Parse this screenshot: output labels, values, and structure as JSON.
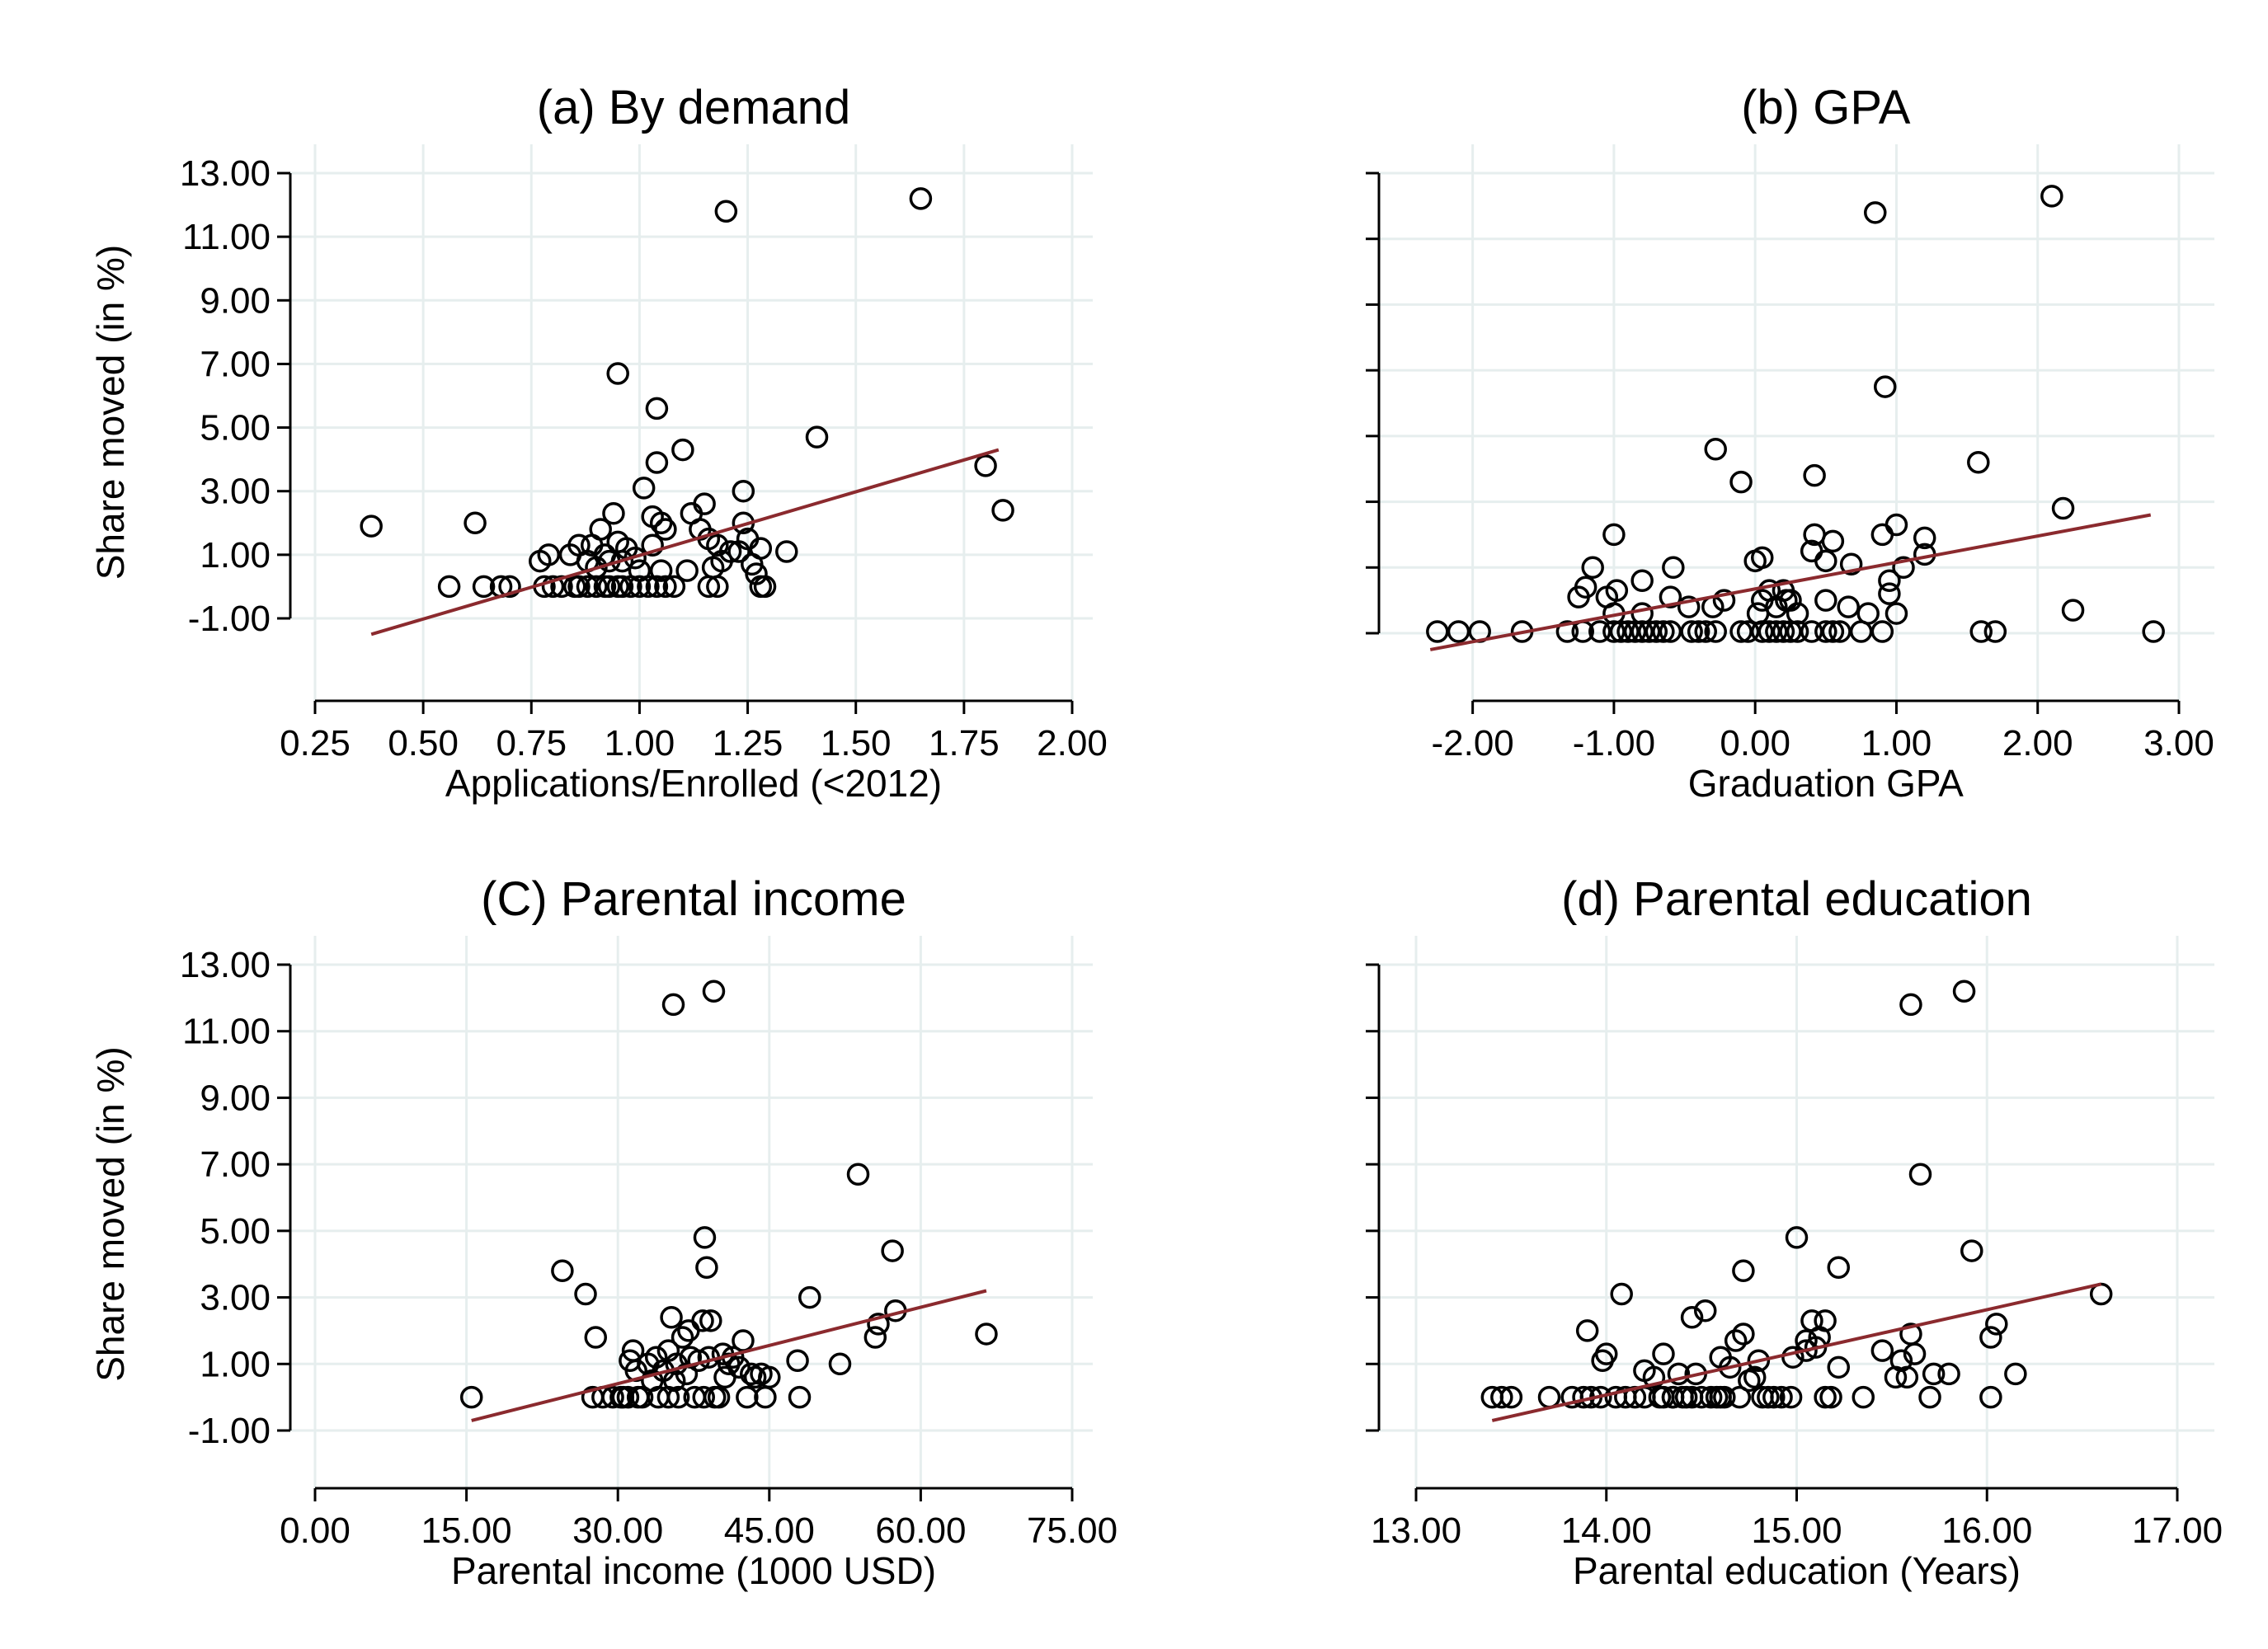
{
  "figure": {
    "colors": {
      "fit_line": "#8b2a2e",
      "grid": "#e6eeee",
      "marker": "#000000"
    }
  },
  "chart_data": [
    {
      "type": "scatter",
      "title": "(a) By demand",
      "xlabel": "Applications/Enrolled (<2012)",
      "ylabel": "Share moved (in %)",
      "xlim": [
        0.25,
        2.0
      ],
      "ylim": [
        -1.0,
        13.0
      ],
      "xticks": [
        0.25,
        0.5,
        0.75,
        1.0,
        1.25,
        1.5,
        1.75,
        2.0
      ],
      "xtick_labels": [
        "0.25",
        "0.50",
        "0.75",
        "1.00",
        "1.25",
        "1.50",
        "1.75",
        "2.00"
      ],
      "yticks": [
        -1,
        1,
        3,
        5,
        7,
        9,
        11,
        13
      ],
      "ytick_labels": [
        "-1.00",
        "1.00",
        "3.00",
        "5.00",
        "7.00",
        "9.00",
        "11.00",
        "13.00"
      ],
      "show_ytick_labels": true,
      "grid": true,
      "fit": {
        "x": [
          0.38,
          1.83
        ],
        "y": [
          -1.5,
          4.3
        ]
      },
      "points": [
        [
          0.38,
          1.9
        ],
        [
          0.56,
          0.0
        ],
        [
          0.62,
          2.0
        ],
        [
          0.64,
          0.0
        ],
        [
          0.68,
          0.0
        ],
        [
          0.7,
          0.0
        ],
        [
          0.77,
          0.8
        ],
        [
          0.79,
          1.0
        ],
        [
          0.78,
          0.0
        ],
        [
          0.8,
          0.0
        ],
        [
          0.82,
          0.0
        ],
        [
          0.84,
          1.0
        ],
        [
          0.85,
          0.0
        ],
        [
          0.86,
          1.3
        ],
        [
          0.88,
          0.0
        ],
        [
          0.88,
          0.8
        ],
        [
          0.89,
          1.3
        ],
        [
          0.9,
          0.0
        ],
        [
          0.9,
          0.6
        ],
        [
          0.91,
          1.8
        ],
        [
          0.92,
          1.0
        ],
        [
          0.93,
          0.8
        ],
        [
          0.93,
          0.0
        ],
        [
          0.94,
          2.3
        ],
        [
          0.95,
          1.4
        ],
        [
          0.96,
          0.0
        ],
        [
          0.96,
          0.8
        ],
        [
          0.97,
          1.2
        ],
        [
          0.98,
          0.0
        ],
        [
          0.99,
          0.9
        ],
        [
          1.0,
          0.0
        ],
        [
          1.0,
          0.5
        ],
        [
          1.01,
          3.1
        ],
        [
          1.02,
          0.0
        ],
        [
          1.03,
          1.3
        ],
        [
          1.03,
          2.2
        ],
        [
          1.04,
          0.0
        ],
        [
          1.05,
          0.5
        ],
        [
          1.05,
          2.0
        ],
        [
          1.06,
          1.8
        ],
        [
          0.95,
          6.7
        ],
        [
          1.04,
          5.6
        ],
        [
          1.04,
          3.9
        ],
        [
          1.1,
          4.3
        ],
        [
          1.08,
          0.0
        ],
        [
          1.11,
          0.5
        ],
        [
          1.12,
          2.3
        ],
        [
          1.14,
          1.8
        ],
        [
          1.15,
          2.6
        ],
        [
          1.16,
          1.5
        ],
        [
          1.16,
          0.0
        ],
        [
          1.17,
          0.6
        ],
        [
          1.18,
          0.0
        ],
        [
          1.18,
          1.3
        ],
        [
          1.19,
          0.8
        ],
        [
          1.21,
          1.1
        ],
        [
          1.23,
          1.1
        ],
        [
          1.24,
          2.0
        ],
        [
          1.24,
          3.0
        ],
        [
          1.25,
          1.5
        ],
        [
          1.26,
          0.7
        ],
        [
          1.27,
          0.4
        ],
        [
          1.28,
          0.0
        ],
        [
          1.28,
          1.2
        ],
        [
          1.29,
          0.0
        ],
        [
          1.34,
          1.1
        ],
        [
          1.41,
          4.7
        ],
        [
          1.2,
          11.8
        ],
        [
          1.65,
          12.2
        ],
        [
          1.8,
          3.8
        ],
        [
          1.84,
          2.4
        ],
        [
          0.92,
          0.0
        ],
        [
          0.86,
          0.0
        ],
        [
          0.95,
          0.0
        ],
        [
          1.06,
          0.0
        ]
      ]
    },
    {
      "type": "scatter",
      "title": "(b) GPA",
      "xlabel": "Graduation GPA",
      "ylabel": "",
      "xlim": [
        -2.5,
        3.0
      ],
      "ylim": [
        -1.0,
        13.0
      ],
      "xticks": [
        -2,
        -1,
        0,
        1,
        2,
        3
      ],
      "xtick_labels": [
        "-2.00",
        "-1.00",
        "0.00",
        "1.00",
        "2.00",
        "3.00"
      ],
      "yticks": [
        -1,
        1,
        3,
        5,
        7,
        9,
        11,
        13
      ],
      "ytick_labels": [],
      "show_ytick_labels": false,
      "grid": true,
      "fit": {
        "x": [
          -2.3,
          2.8
        ],
        "y": [
          -1.5,
          2.6
        ]
      },
      "points": [
        [
          -2.25,
          -0.95
        ],
        [
          -2.1,
          -0.95
        ],
        [
          -1.95,
          -0.95
        ],
        [
          -1.65,
          -0.95
        ],
        [
          -1.33,
          -0.95
        ],
        [
          -1.22,
          -0.95
        ],
        [
          -1.1,
          -0.95
        ],
        [
          -1.0,
          -0.95
        ],
        [
          -0.95,
          -0.95
        ],
        [
          -0.9,
          -0.95
        ],
        [
          -0.85,
          -0.95
        ],
        [
          -0.8,
          -0.95
        ],
        [
          -0.75,
          -0.95
        ],
        [
          -0.7,
          -0.95
        ],
        [
          -0.65,
          -0.95
        ],
        [
          -0.6,
          -0.95
        ],
        [
          -0.45,
          -0.95
        ],
        [
          -0.4,
          -0.95
        ],
        [
          -0.35,
          -0.95
        ],
        [
          -0.28,
          -0.95
        ],
        [
          -0.1,
          -0.95
        ],
        [
          -0.05,
          -0.95
        ],
        [
          0.05,
          -0.95
        ],
        [
          0.1,
          -0.95
        ],
        [
          0.15,
          -0.95
        ],
        [
          0.2,
          -0.95
        ],
        [
          0.25,
          -0.95
        ],
        [
          0.3,
          -0.95
        ],
        [
          0.4,
          -0.95
        ],
        [
          0.5,
          -0.95
        ],
        [
          0.55,
          -0.95
        ],
        [
          0.6,
          -0.95
        ],
        [
          0.75,
          -0.95
        ],
        [
          0.9,
          -0.95
        ],
        [
          1.6,
          -0.95
        ],
        [
          1.7,
          -0.95
        ],
        [
          2.82,
          -0.95
        ],
        [
          -1.25,
          0.1
        ],
        [
          -1.2,
          0.4
        ],
        [
          -1.15,
          1.0
        ],
        [
          -1.05,
          0.1
        ],
        [
          -1.0,
          2.0
        ],
        [
          -1.0,
          -0.4
        ],
        [
          -0.98,
          0.3
        ],
        [
          -0.8,
          0.6
        ],
        [
          -0.8,
          -0.4
        ],
        [
          -0.6,
          0.1
        ],
        [
          -0.58,
          1.0
        ],
        [
          -0.47,
          -0.2
        ],
        [
          -0.3,
          -0.2
        ],
        [
          -0.28,
          4.6
        ],
        [
          -0.22,
          0.0
        ],
        [
          -0.1,
          3.6
        ],
        [
          0.0,
          1.2
        ],
        [
          0.02,
          -0.4
        ],
        [
          0.05,
          0.0
        ],
        [
          0.05,
          1.3
        ],
        [
          0.1,
          0.3
        ],
        [
          0.15,
          -0.2
        ],
        [
          0.2,
          0.3
        ],
        [
          0.22,
          0.0
        ],
        [
          0.25,
          0.0
        ],
        [
          0.3,
          -0.4
        ],
        [
          0.4,
          1.5
        ],
        [
          0.42,
          2.0
        ],
        [
          0.42,
          3.8
        ],
        [
          0.5,
          1.2
        ],
        [
          0.5,
          0.0
        ],
        [
          0.55,
          1.8
        ],
        [
          0.66,
          -0.2
        ],
        [
          0.68,
          1.1
        ],
        [
          0.8,
          -0.4
        ],
        [
          0.85,
          11.8
        ],
        [
          0.9,
          2.0
        ],
        [
          0.92,
          6.5
        ],
        [
          0.95,
          0.2
        ],
        [
          0.95,
          0.6
        ],
        [
          1.0,
          -0.4
        ],
        [
          1.0,
          2.3
        ],
        [
          1.05,
          1.0
        ],
        [
          1.2,
          1.9
        ],
        [
          1.2,
          1.4
        ],
        [
          1.58,
          4.2
        ],
        [
          2.1,
          12.3
        ],
        [
          2.18,
          2.8
        ],
        [
          2.25,
          -0.3
        ]
      ]
    },
    {
      "type": "scatter",
      "title": "(C) Parental income",
      "xlabel": "Parental income (1000 USD)",
      "ylabel": "Share moved (in %)",
      "xlim": [
        0,
        75
      ],
      "ylim": [
        -1.0,
        13.0
      ],
      "xticks": [
        0,
        15,
        30,
        45,
        60,
        75
      ],
      "xtick_labels": [
        "0.00",
        "15.00",
        "30.00",
        "45.00",
        "60.00",
        "75.00"
      ],
      "yticks": [
        -1,
        1,
        3,
        5,
        7,
        9,
        11,
        13
      ],
      "ytick_labels": [
        "-1.00",
        "1.00",
        "3.00",
        "5.00",
        "7.00",
        "9.00",
        "11.00",
        "13.00"
      ],
      "show_ytick_labels": true,
      "grid": true,
      "fit": {
        "x": [
          15.5,
          66.5
        ],
        "y": [
          -0.7,
          3.2
        ]
      },
      "points": [
        [
          15.5,
          0.0
        ],
        [
          24.5,
          3.8
        ],
        [
          26.8,
          3.1
        ],
        [
          27.8,
          1.8
        ],
        [
          27.5,
          0.0
        ],
        [
          28.5,
          0.0
        ],
        [
          29.5,
          0.0
        ],
        [
          30.3,
          0.0
        ],
        [
          31.0,
          0.0
        ],
        [
          31.2,
          1.1
        ],
        [
          31.5,
          1.4
        ],
        [
          31.8,
          0.8
        ],
        [
          32.4,
          0.0
        ],
        [
          33.0,
          1.0
        ],
        [
          33.4,
          0.5
        ],
        [
          33.8,
          1.2
        ],
        [
          34.0,
          0.0
        ],
        [
          34.5,
          0.8
        ],
        [
          35.0,
          1.4
        ],
        [
          35.3,
          2.4
        ],
        [
          35.6,
          0.5
        ],
        [
          35.8,
          1.0
        ],
        [
          36.0,
          0.0
        ],
        [
          36.4,
          1.8
        ],
        [
          36.8,
          0.7
        ],
        [
          37.0,
          2.0
        ],
        [
          37.2,
          1.2
        ],
        [
          37.6,
          0.0
        ],
        [
          38.0,
          1.1
        ],
        [
          38.4,
          2.3
        ],
        [
          38.6,
          4.8
        ],
        [
          38.8,
          3.9
        ],
        [
          39.0,
          1.2
        ],
        [
          39.2,
          2.3
        ],
        [
          39.6,
          0.0
        ],
        [
          40.0,
          0.0
        ],
        [
          40.4,
          1.3
        ],
        [
          40.6,
          0.6
        ],
        [
          41.0,
          1.0
        ],
        [
          41.4,
          1.2
        ],
        [
          42.0,
          0.9
        ],
        [
          42.4,
          1.7
        ],
        [
          42.8,
          0.0
        ],
        [
          43.2,
          0.7
        ],
        [
          43.6,
          0.6
        ],
        [
          44.2,
          0.7
        ],
        [
          44.6,
          0.0
        ],
        [
          45.0,
          0.6
        ],
        [
          47.8,
          1.1
        ],
        [
          48.0,
          0.0
        ],
        [
          49.0,
          3.0
        ],
        [
          52.0,
          1.0
        ],
        [
          53.8,
          6.7
        ],
        [
          55.5,
          1.8
        ],
        [
          55.8,
          2.2
        ],
        [
          57.2,
          4.4
        ],
        [
          57.5,
          2.6
        ],
        [
          66.5,
          1.9
        ],
        [
          35.5,
          11.8
        ],
        [
          39.5,
          12.2
        ],
        [
          32.0,
          0.0
        ],
        [
          35.0,
          0.0
        ],
        [
          38.5,
          0.0
        ],
        [
          30.5,
          0.0
        ]
      ]
    },
    {
      "type": "scatter",
      "title": "(d) Parental education",
      "xlabel": "Parental education (Years)",
      "ylabel": "",
      "xlim": [
        13.0,
        17.0
      ],
      "ylim": [
        -1.0,
        13.0
      ],
      "xticks": [
        13,
        14,
        15,
        16,
        17
      ],
      "xtick_labels": [
        "13.00",
        "14.00",
        "15.00",
        "16.00",
        "17.00"
      ],
      "yticks": [
        -1,
        1,
        3,
        5,
        7,
        9,
        11,
        13
      ],
      "ytick_labels": [],
      "show_ytick_labels": false,
      "grid": true,
      "fit": {
        "x": [
          13.4,
          16.6
        ],
        "y": [
          -0.7,
          3.4
        ]
      },
      "points": [
        [
          13.4,
          0.0
        ],
        [
          13.45,
          0.0
        ],
        [
          13.5,
          0.0
        ],
        [
          13.7,
          0.0
        ],
        [
          13.82,
          0.0
        ],
        [
          13.88,
          0.0
        ],
        [
          13.92,
          0.0
        ],
        [
          13.97,
          0.0
        ],
        [
          13.98,
          1.1
        ],
        [
          14.0,
          1.3
        ],
        [
          13.9,
          2.0
        ],
        [
          14.05,
          0.0
        ],
        [
          14.08,
          3.1
        ],
        [
          14.1,
          0.0
        ],
        [
          14.2,
          0.0
        ],
        [
          14.2,
          0.8
        ],
        [
          14.25,
          0.6
        ],
        [
          14.28,
          0.0
        ],
        [
          14.3,
          0.0
        ],
        [
          14.3,
          1.3
        ],
        [
          14.35,
          0.0
        ],
        [
          14.38,
          0.7
        ],
        [
          14.4,
          0.0
        ],
        [
          14.42,
          0.0
        ],
        [
          14.45,
          0.0
        ],
        [
          14.45,
          2.4
        ],
        [
          14.47,
          0.7
        ],
        [
          14.5,
          0.0
        ],
        [
          14.52,
          2.6
        ],
        [
          14.55,
          0.0
        ],
        [
          14.58,
          0.0
        ],
        [
          14.6,
          1.2
        ],
        [
          14.62,
          0.0
        ],
        [
          14.65,
          0.9
        ],
        [
          14.68,
          1.7
        ],
        [
          14.7,
          0.0
        ],
        [
          14.72,
          1.9
        ],
        [
          14.72,
          3.8
        ],
        [
          14.75,
          0.5
        ],
        [
          14.78,
          0.6
        ],
        [
          14.8,
          1.1
        ],
        [
          14.82,
          0.0
        ],
        [
          14.85,
          0.0
        ],
        [
          14.88,
          0.0
        ],
        [
          14.92,
          0.0
        ],
        [
          14.97,
          0.0
        ],
        [
          14.98,
          1.2
        ],
        [
          15.0,
          4.8
        ],
        [
          15.05,
          1.4
        ],
        [
          15.05,
          1.7
        ],
        [
          15.08,
          2.3
        ],
        [
          15.1,
          1.5
        ],
        [
          15.12,
          1.8
        ],
        [
          15.15,
          0.0
        ],
        [
          15.15,
          2.3
        ],
        [
          15.18,
          0.0
        ],
        [
          15.22,
          3.9
        ],
        [
          15.22,
          0.9
        ],
        [
          15.35,
          0.0
        ],
        [
          15.45,
          1.4
        ],
        [
          15.52,
          0.6
        ],
        [
          15.55,
          1.1
        ],
        [
          15.58,
          0.6
        ],
        [
          15.6,
          1.9
        ],
        [
          15.62,
          1.3
        ],
        [
          15.6,
          11.8
        ],
        [
          15.65,
          6.7
        ],
        [
          15.7,
          0.0
        ],
        [
          15.72,
          0.7
        ],
        [
          15.8,
          0.7
        ],
        [
          15.88,
          12.2
        ],
        [
          15.92,
          4.4
        ],
        [
          16.02,
          0.0
        ],
        [
          16.02,
          1.8
        ],
        [
          16.05,
          2.2
        ],
        [
          16.15,
          0.7
        ],
        [
          16.6,
          3.1
        ],
        [
          14.15,
          0.0
        ],
        [
          14.35,
          0.0
        ],
        [
          14.6,
          0.0
        ]
      ]
    }
  ]
}
